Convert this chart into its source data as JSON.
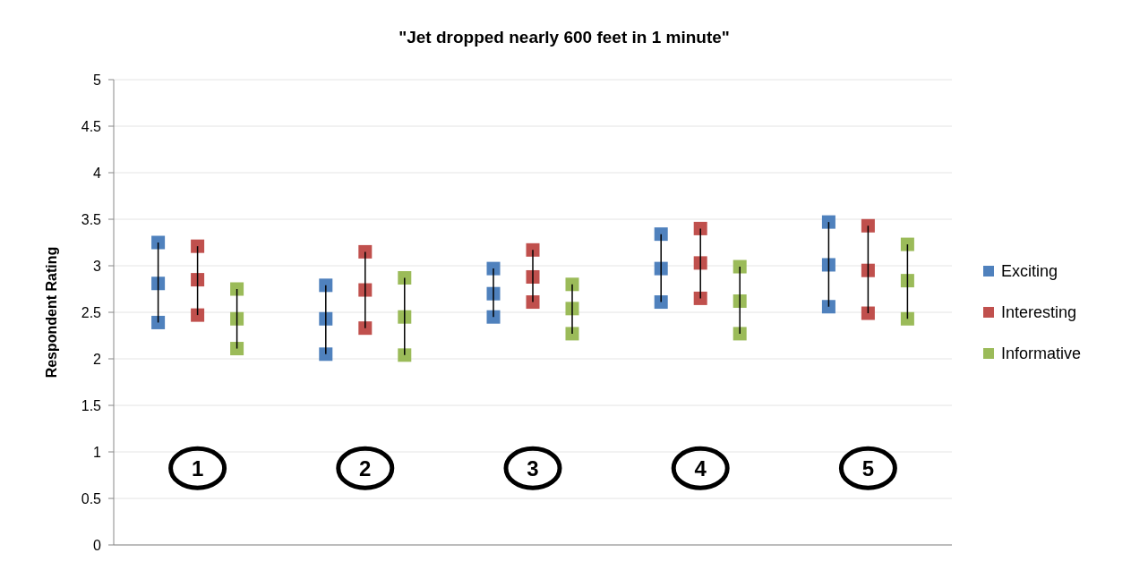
{
  "chart_data": {
    "type": "scatter",
    "title": "\"Jet dropped nearly 600 feet in 1 minute\"",
    "ylabel": "Respondent Rating",
    "categories": [
      "1",
      "2",
      "3",
      "4",
      "5"
    ],
    "ylim": [
      0,
      5
    ],
    "yticks": [
      0,
      0.5,
      1,
      1.5,
      2,
      2.5,
      3,
      3.5,
      4,
      4.5,
      5
    ],
    "grid": "y",
    "legend": "right",
    "marker": "square",
    "series": [
      {
        "name": "Exciting",
        "color": "#4f81bd",
        "x": [
          "1",
          "1",
          "1",
          "2",
          "2",
          "2",
          "3",
          "3",
          "3",
          "4",
          "4",
          "4",
          "5",
          "5",
          "5"
        ],
        "values": [
          2.39,
          2.81,
          3.25,
          2.05,
          2.43,
          2.79,
          2.45,
          2.7,
          2.97,
          2.61,
          2.97,
          3.34,
          2.56,
          3.01,
          3.47
        ],
        "errors": [
          null,
          [
            2.39,
            3.25
          ],
          null,
          null,
          [
            2.05,
            2.79
          ],
          null,
          null,
          [
            2.45,
            2.97
          ],
          null,
          null,
          [
            2.61,
            3.34
          ],
          null,
          null,
          [
            2.56,
            3.47
          ],
          null
        ]
      },
      {
        "name": "Interesting",
        "color": "#c0504d",
        "x": [
          "1",
          "1",
          "1",
          "2",
          "2",
          "2",
          "3",
          "3",
          "3",
          "4",
          "4",
          "4",
          "5",
          "5",
          "5"
        ],
        "values": [
          2.47,
          2.85,
          3.21,
          2.33,
          2.74,
          3.15,
          2.61,
          2.88,
          3.17,
          2.65,
          3.03,
          3.4,
          2.49,
          2.95,
          3.43
        ],
        "errors": [
          null,
          [
            2.47,
            3.21
          ],
          null,
          null,
          [
            2.33,
            3.15
          ],
          null,
          null,
          [
            2.61,
            3.17
          ],
          null,
          null,
          [
            2.65,
            3.4
          ],
          null,
          null,
          [
            2.49,
            3.43
          ],
          null
        ]
      },
      {
        "name": "Informative",
        "color": "#9bbb59",
        "x": [
          "1",
          "1",
          "1",
          "2",
          "2",
          "2",
          "3",
          "3",
          "3",
          "4",
          "4",
          "4",
          "5",
          "5",
          "5"
        ],
        "values": [
          2.11,
          2.43,
          2.75,
          2.04,
          2.45,
          2.87,
          2.27,
          2.54,
          2.8,
          2.27,
          2.62,
          2.99,
          2.43,
          2.84,
          3.23
        ],
        "errors": [
          null,
          [
            2.11,
            2.75
          ],
          null,
          null,
          [
            2.04,
            2.87
          ],
          null,
          null,
          [
            2.27,
            2.8
          ],
          null,
          null,
          [
            2.27,
            2.99
          ],
          null,
          null,
          [
            2.43,
            3.23
          ],
          null
        ]
      }
    ]
  }
}
